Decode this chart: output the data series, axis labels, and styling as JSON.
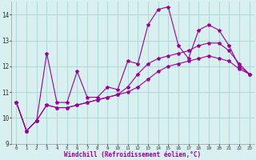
{
  "xlabel": "Windchill (Refroidissement éolien,°C)",
  "x_hours": [
    0,
    1,
    2,
    3,
    4,
    5,
    6,
    7,
    8,
    9,
    10,
    11,
    12,
    13,
    14,
    15,
    16,
    17,
    18,
    19,
    20,
    21,
    22,
    23
  ],
  "series1": [
    10.6,
    9.5,
    9.9,
    12.5,
    10.6,
    10.6,
    11.8,
    10.8,
    10.8,
    11.2,
    11.1,
    12.2,
    12.1,
    13.6,
    14.2,
    14.3,
    12.8,
    12.3,
    13.4,
    13.6,
    13.4,
    12.8,
    12.0,
    11.7
  ],
  "series2": [
    10.6,
    9.5,
    9.9,
    10.5,
    10.4,
    10.4,
    10.5,
    10.6,
    10.7,
    10.8,
    10.9,
    11.0,
    11.2,
    11.5,
    11.8,
    12.0,
    12.1,
    12.2,
    12.3,
    12.4,
    12.3,
    12.2,
    11.9,
    11.7
  ],
  "series3": [
    10.6,
    9.5,
    9.9,
    10.5,
    10.4,
    10.4,
    10.5,
    10.6,
    10.7,
    10.8,
    10.9,
    11.2,
    11.7,
    12.1,
    12.3,
    12.4,
    12.5,
    12.6,
    12.8,
    12.9,
    12.9,
    12.6,
    12.1,
    11.7
  ],
  "line_color": "#990099",
  "bg_color": "#d8f0f0",
  "grid_color": "#b0d8d8",
  "ylim": [
    9.0,
    14.5
  ],
  "yticks": [
    9,
    10,
    11,
    12,
    13,
    14
  ],
  "xticks": [
    0,
    1,
    2,
    3,
    4,
    5,
    6,
    7,
    8,
    9,
    10,
    11,
    12,
    13,
    14,
    15,
    16,
    17,
    18,
    19,
    20,
    21,
    22,
    23
  ]
}
